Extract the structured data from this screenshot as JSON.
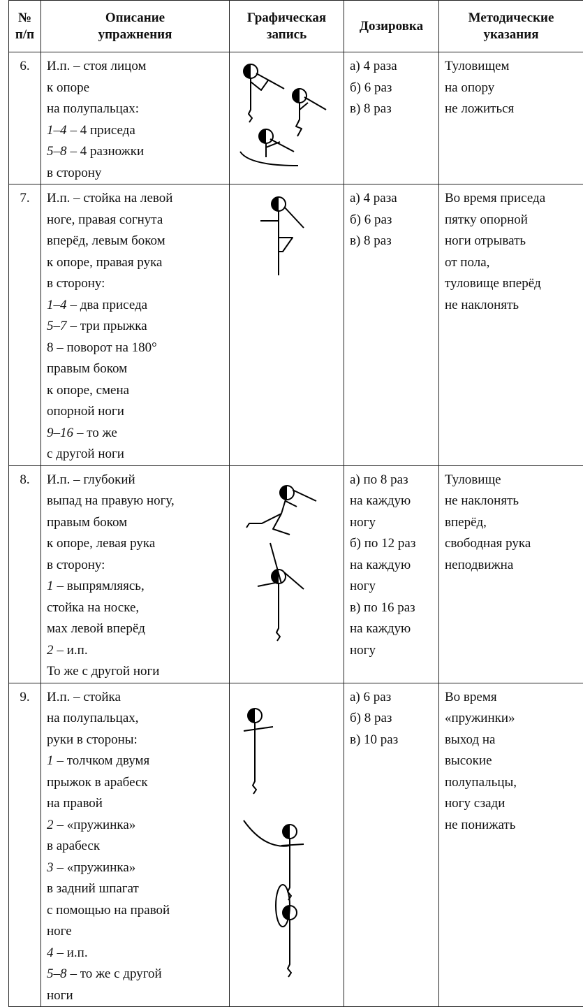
{
  "table": {
    "header": [
      [
        "№",
        "п/п"
      ],
      [
        "Описание",
        "упражнения"
      ],
      [
        "Графическая",
        "запись"
      ],
      [
        "Дозировка"
      ],
      [
        "Методические",
        "указания"
      ]
    ],
    "rows": [
      {
        "number": "6.",
        "description": [
          "И.п. – стоя лицом",
          "к опоре",
          "на полупальцах:",
          {
            "count": "1–4",
            "text": "– 4 приседа"
          },
          {
            "count": "5–8",
            "text": "– 4 разножки"
          },
          "в сторону"
        ],
        "dosage": [
          "а) 4 раза",
          "б) 6 раз",
          "в) 8 раз"
        ],
        "notes": [
          "Туловищем",
          "на опору",
          "не ложиться"
        ]
      },
      {
        "number": "7.",
        "description": [
          "И.п. – стойка на левой",
          "ноге, правая согнута",
          "вперёд, левым боком",
          "к опоре, правая рука",
          "в сторону:",
          {
            "count": "1–4",
            "text": "– два приседа"
          },
          {
            "count": "5–7",
            "text": "– три прыжка"
          },
          "8 – поворот на 180°",
          "правым боком",
          "к опоре, смена",
          "опорной ноги",
          {
            "count": "9–16",
            "text": "– то же"
          },
          "с другой ноги"
        ],
        "dosage": [
          "а) 4 раза",
          "б) 6 раз",
          "в) 8 раз"
        ],
        "notes": [
          "Во время приседа",
          "пятку опорной",
          "ноги отрывать",
          "от пола,",
          "туловище вперёд",
          "не наклонять"
        ]
      },
      {
        "number": "8.",
        "description": [
          "И.п. – глубокий",
          "выпад на правую ногу,",
          "правым боком",
          "к опоре, левая рука",
          "в сторону:",
          {
            "count": "1",
            "text": "– выпрямляясь,"
          },
          "стойка на носке,",
          "мах левой вперёд",
          {
            "count": "2",
            "text": "– и.п."
          },
          "То же с другой ноги"
        ],
        "dosage": [
          "а) по 8 раз",
          "на каждую",
          "ногу",
          "б) по 12 раз",
          "на каждую",
          "ногу",
          "в) по 16 раз",
          "на каждую",
          "ногу"
        ],
        "notes": [
          "Туловище",
          "не наклонять",
          "вперёд,",
          "свободная рука",
          "неподвижна"
        ]
      },
      {
        "number": "9.",
        "description": [
          "И.п. – стойка",
          "на полупальцах,",
          "руки в стороны:",
          {
            "count": "1",
            "text": "– толчком двумя"
          },
          "прыжок в арабеск",
          "на правой",
          {
            "count": "2",
            "text": "– «пружинка»"
          },
          "в арабеск",
          {
            "count": "3",
            "text": "– «пружинка»"
          },
          "в задний шпагат",
          "с помощью на правой",
          "ноге",
          {
            "count": "4",
            "text": "– и.п."
          },
          {
            "count": "5–8",
            "text": "– то же с другой"
          },
          "ноги"
        ],
        "dosage": [
          "а) 6 раз",
          "б) 8 раз",
          "в) 10 раз"
        ],
        "notes": [
          "Во время",
          "«пружинки»",
          "выход на",
          "высокие",
          "полупальцы,",
          "ногу сзади",
          "не понижать"
        ]
      }
    ]
  }
}
